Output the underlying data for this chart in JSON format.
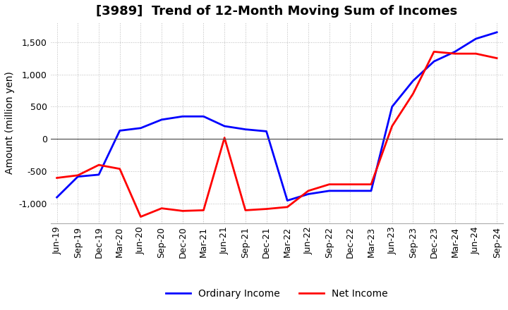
{
  "title": "[3989]  Trend of 12-Month Moving Sum of Incomes",
  "ylabel": "Amount (million yen)",
  "background_color": "#ffffff",
  "grid_color": "#bbbbbb",
  "x_labels": [
    "Jun-19",
    "Sep-19",
    "Dec-19",
    "Mar-20",
    "Jun-20",
    "Sep-20",
    "Dec-20",
    "Mar-21",
    "Jun-21",
    "Sep-21",
    "Dec-21",
    "Mar-22",
    "Jun-22",
    "Sep-22",
    "Dec-22",
    "Mar-23",
    "Jun-23",
    "Sep-23",
    "Dec-23",
    "Mar-24",
    "Jun-24",
    "Sep-24"
  ],
  "ordinary_income": [
    -900,
    -580,
    -550,
    130,
    170,
    300,
    350,
    350,
    200,
    150,
    120,
    -950,
    -850,
    -800,
    -800,
    -800,
    500,
    900,
    1200,
    1350,
    1550,
    1650
  ],
  "net_income": [
    -600,
    -560,
    -400,
    -460,
    -1200,
    -1070,
    -1110,
    -1100,
    20,
    -1100,
    -1080,
    -1050,
    -800,
    -700,
    -700,
    -700,
    200,
    700,
    1350,
    1320,
    1320,
    1250
  ],
  "ordinary_color": "#0000ff",
  "net_color": "#ff0000",
  "ylim": [
    -1300,
    1800
  ],
  "yticks": [
    -1000,
    -500,
    0,
    500,
    1000,
    1500
  ],
  "title_fontsize": 13,
  "axis_fontsize": 10,
  "tick_fontsize": 9,
  "legend_fontsize": 10
}
